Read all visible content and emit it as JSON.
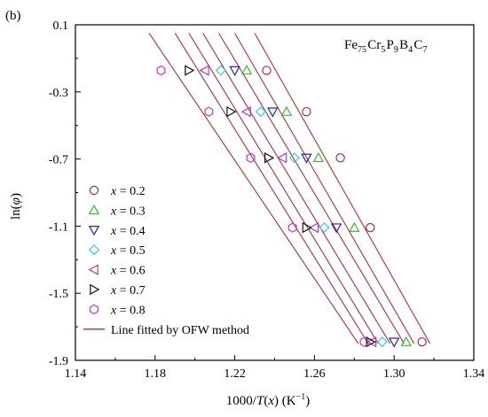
{
  "panel_label": "(b)",
  "chart_data": {
    "type": "scatter",
    "title": "",
    "panel_label": "(b)",
    "annotation": {
      "composition": [
        {
          "text": "Fe",
          "sub": "75"
        },
        {
          "text": "Cr",
          "sub": "5"
        },
        {
          "text": "P",
          "sub": "9"
        },
        {
          "text": "B",
          "sub": "4"
        },
        {
          "text": "C",
          "sub": "7"
        }
      ]
    },
    "xlabel": {
      "prefix": "1000/",
      "italic": "T",
      "middle": "(",
      "italic2": "x",
      "suffix": ") (K",
      "sup": "−1",
      "end": ")"
    },
    "ylabel": {
      "prefix": "ln(",
      "italic": "φ",
      "suffix": ")"
    },
    "xlim": [
      1.14,
      1.34
    ],
    "ylim": [
      -1.9,
      0.1
    ],
    "xticks": [
      "1.14",
      "1.18",
      "1.22",
      "1.26",
      "1.30",
      "1.34"
    ],
    "yticks": [
      "0.1",
      "-0.3",
      "-0.7",
      "-1.1",
      "-1.5",
      "-1.9"
    ],
    "grid": false,
    "legend_position": "center-left",
    "series": [
      {
        "name": "x = 0.2",
        "label_var": "x",
        "label_val": "= 0.2",
        "marker": "circle",
        "color": "#b03030",
        "x": [
          1.236,
          1.256,
          1.273,
          1.288,
          1.314
        ],
        "y": [
          -0.172,
          -0.418,
          -0.693,
          -1.109,
          -1.79
        ]
      },
      {
        "name": "x = 0.3",
        "label_var": "x",
        "label_val": "= 0.3",
        "marker": "triangle-up",
        "color": "#33bb33",
        "x": [
          1.226,
          1.246,
          1.262,
          1.28,
          1.306
        ],
        "y": [
          -0.172,
          -0.418,
          -0.693,
          -1.109,
          -1.79
        ]
      },
      {
        "name": "x = 0.4",
        "label_var": "x",
        "label_val": "= 0.4",
        "marker": "triangle-down",
        "color": "#2020cc",
        "x": [
          1.22,
          1.239,
          1.256,
          1.271,
          1.3
        ],
        "y": [
          -0.172,
          -0.418,
          -0.693,
          -1.109,
          -1.79
        ]
      },
      {
        "name": "x = 0.5",
        "label_var": "x",
        "label_val": "= 0.5",
        "marker": "diamond",
        "color": "#33ccdd",
        "x": [
          1.213,
          1.233,
          1.25,
          1.265,
          1.294
        ],
        "y": [
          -0.172,
          -0.418,
          -0.693,
          -1.109,
          -1.79
        ]
      },
      {
        "name": "x = 0.6",
        "label_var": "x",
        "label_val": "= 0.6",
        "marker": "triangle-left",
        "color": "#bb33bb",
        "x": [
          1.205,
          1.226,
          1.244,
          1.26,
          1.289
        ],
        "y": [
          -0.172,
          -0.418,
          -0.693,
          -1.109,
          -1.79
        ]
      },
      {
        "name": "x = 0.7",
        "label_var": "x",
        "label_val": "= 0.7",
        "marker": "triangle-right",
        "color": "#111111",
        "x": [
          1.197,
          1.218,
          1.237,
          1.256,
          1.288
        ],
        "y": [
          -0.172,
          -0.418,
          -0.693,
          -1.109,
          -1.79
        ]
      },
      {
        "name": "x = 0.8",
        "label_var": "x",
        "label_val": "= 0.8",
        "marker": "hexagon",
        "color": "#cc33cc",
        "x": [
          1.183,
          1.207,
          1.228,
          1.249,
          1.285
        ],
        "y": [
          -0.172,
          -0.418,
          -0.693,
          -1.109,
          -1.79
        ]
      }
    ],
    "fitted_lines": {
      "name": "Line fitted by OFW method",
      "color": "#b03030",
      "lines": [
        {
          "x": [
            1.23,
            1.318
          ],
          "y": [
            0.05,
            -1.8
          ]
        },
        {
          "x": [
            1.22,
            1.31
          ],
          "y": [
            0.05,
            -1.8
          ]
        },
        {
          "x": [
            1.212,
            1.305
          ],
          "y": [
            0.05,
            -1.8
          ]
        },
        {
          "x": [
            1.204,
            1.298
          ],
          "y": [
            0.05,
            -1.8
          ]
        },
        {
          "x": [
            1.197,
            1.292
          ],
          "y": [
            0.05,
            -1.8
          ]
        },
        {
          "x": [
            1.19,
            1.287
          ],
          "y": [
            0.05,
            -1.8
          ]
        },
        {
          "x": [
            1.177,
            1.282
          ],
          "y": [
            0.05,
            -1.8
          ]
        }
      ]
    }
  }
}
